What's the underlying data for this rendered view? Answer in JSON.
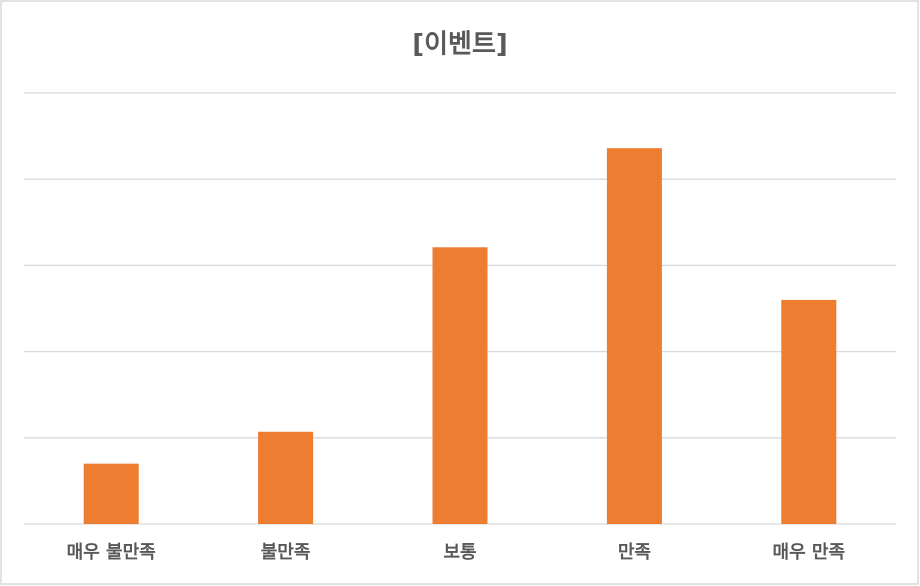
{
  "chart_data": {
    "type": "bar",
    "title": "[이벤트]",
    "categories": [
      "매우 불만족",
      "불만족",
      "보통",
      "만족",
      "매우 만족"
    ],
    "values": [
      0.7,
      1.07,
      3.21,
      4.36,
      2.6
    ],
    "color": "#ed7d31",
    "ylim": [
      0,
      5
    ],
    "yticks": [
      0,
      1,
      2,
      3,
      4,
      5
    ],
    "grid": true
  }
}
